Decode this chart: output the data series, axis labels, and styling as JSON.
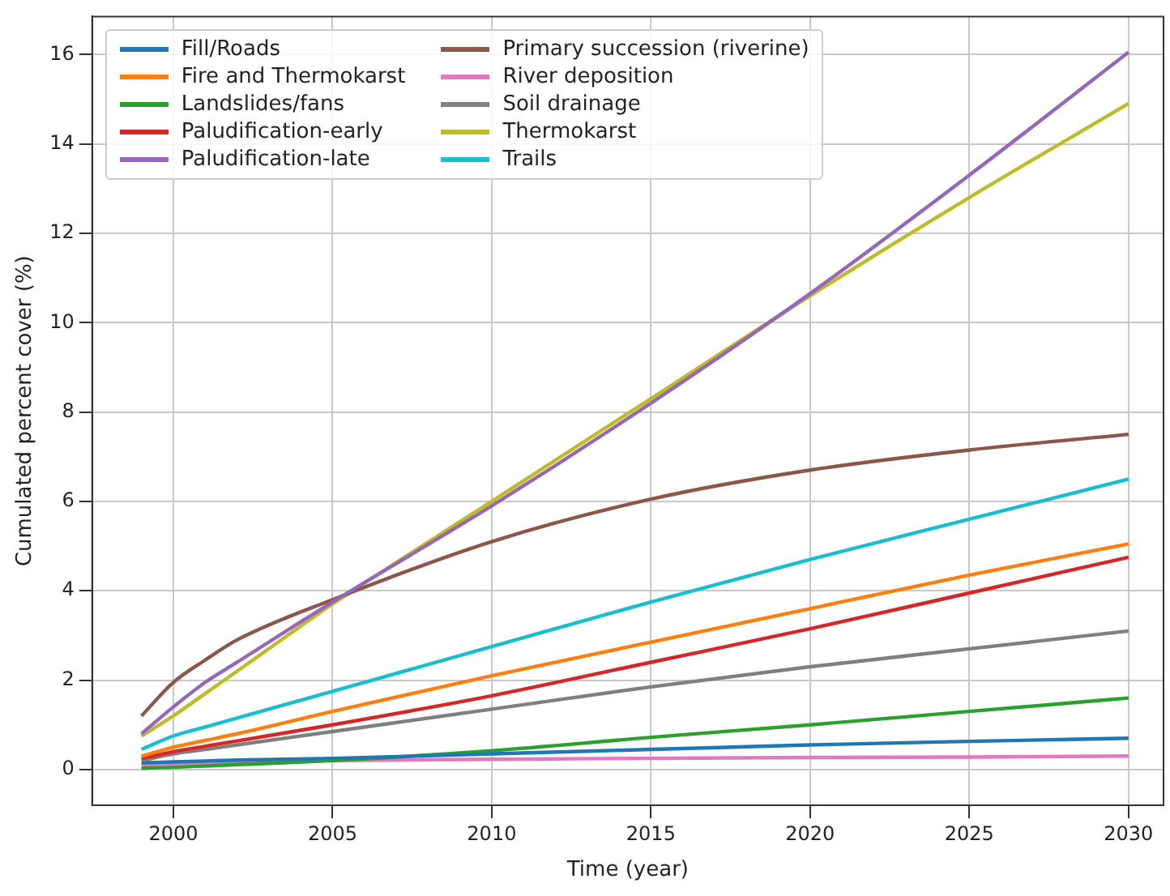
{
  "chart_data": {
    "type": "line",
    "xlabel": "Time (year)",
    "ylabel": "Cumulated percent cover (%)",
    "xlim": [
      1997.45,
      2031.1
    ],
    "ylim": [
      -0.8,
      16.85
    ],
    "xticks": [
      2000,
      2005,
      2010,
      2015,
      2020,
      2025,
      2030
    ],
    "yticks": [
      0,
      2,
      4,
      6,
      8,
      10,
      12,
      14,
      16
    ],
    "grid": true,
    "legend": "top left",
    "marker": "none",
    "line_style": "solid",
    "x": [
      1999,
      2000,
      2001,
      2002,
      2005,
      2010,
      2015,
      2020,
      2025,
      2030
    ],
    "series": [
      {
        "name": "Fill/Roads",
        "color": "#1f77b4",
        "values": [
          0.15,
          0.17,
          0.19,
          0.21,
          0.25,
          0.35,
          0.45,
          0.55,
          0.63,
          0.7
        ]
      },
      {
        "name": "Fire and Thermokarst",
        "color": "#ff7f0e",
        "values": [
          0.3,
          0.5,
          0.65,
          0.8,
          1.3,
          2.1,
          2.85,
          3.6,
          4.35,
          5.05
        ]
      },
      {
        "name": "Landslides/fans",
        "color": "#2ca02c",
        "values": [
          0.03,
          0.05,
          0.08,
          0.11,
          0.2,
          0.42,
          0.72,
          1.0,
          1.3,
          1.6
        ]
      },
      {
        "name": "Paludification-early",
        "color": "#d62728",
        "values": [
          0.25,
          0.4,
          0.52,
          0.64,
          1.0,
          1.65,
          2.4,
          3.15,
          3.95,
          4.75
        ]
      },
      {
        "name": "Paludification-late",
        "color": "#9467bd",
        "values": [
          0.8,
          1.4,
          1.95,
          2.4,
          3.75,
          5.9,
          8.2,
          10.65,
          13.3,
          16.05
        ]
      },
      {
        "name": "Primary succession (riverine)",
        "color": "#8c564b",
        "values": [
          1.2,
          1.95,
          2.45,
          2.9,
          3.8,
          5.1,
          6.05,
          6.7,
          7.15,
          7.5
        ]
      },
      {
        "name": "River deposition",
        "color": "#e377c2",
        "values": [
          0.1,
          0.13,
          0.15,
          0.16,
          0.2,
          0.23,
          0.25,
          0.27,
          0.28,
          0.3
        ]
      },
      {
        "name": "Soil drainage",
        "color": "#7f7f7f",
        "values": [
          0.2,
          0.35,
          0.45,
          0.55,
          0.85,
          1.35,
          1.85,
          2.3,
          2.7,
          3.1
        ]
      },
      {
        "name": "Thermokarst",
        "color": "#bcbd22",
        "values": [
          0.75,
          1.2,
          1.7,
          2.2,
          3.7,
          6.0,
          8.3,
          10.6,
          12.8,
          14.9
        ]
      },
      {
        "name": "Trails",
        "color": "#17becf",
        "values": [
          0.45,
          0.75,
          0.95,
          1.15,
          1.75,
          2.75,
          3.75,
          4.7,
          5.6,
          6.5
        ]
      }
    ]
  }
}
